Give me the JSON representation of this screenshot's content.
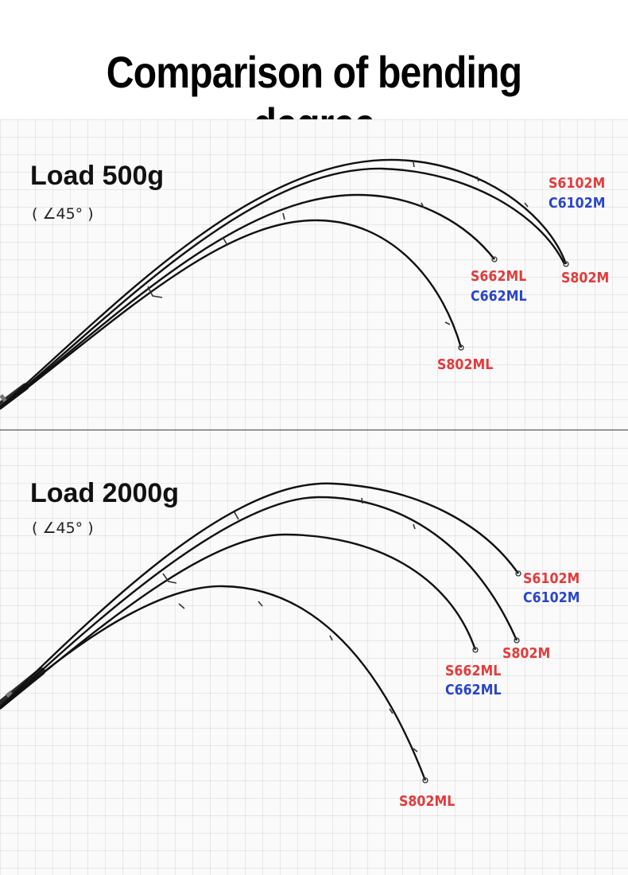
{
  "title": "Comparison of bending degree",
  "colors": {
    "red_label": "#e23b3b",
    "blue_label": "#2a45c8",
    "rod": "#111111",
    "grid": "#e6e6e6"
  },
  "panels": [
    {
      "load_label": "Load 500g",
      "angle_label": "( ∠45° )",
      "rod_labels": {
        "s6102m": "S6102M",
        "c6102m": "C6102M",
        "s802m": "S802M",
        "s662ml": "S662ML",
        "c662ml": "C662ML",
        "s802ml": "S802ML"
      }
    },
    {
      "load_label": "Load 2000g",
      "angle_label": "( ∠45° )",
      "rod_labels": {
        "s6102m": "S6102M",
        "c6102m": "C6102M",
        "s802m": "S802M",
        "s662ml": "S662ML",
        "c662ml": "C662ML",
        "s802ml": "S802ML"
      }
    }
  ]
}
